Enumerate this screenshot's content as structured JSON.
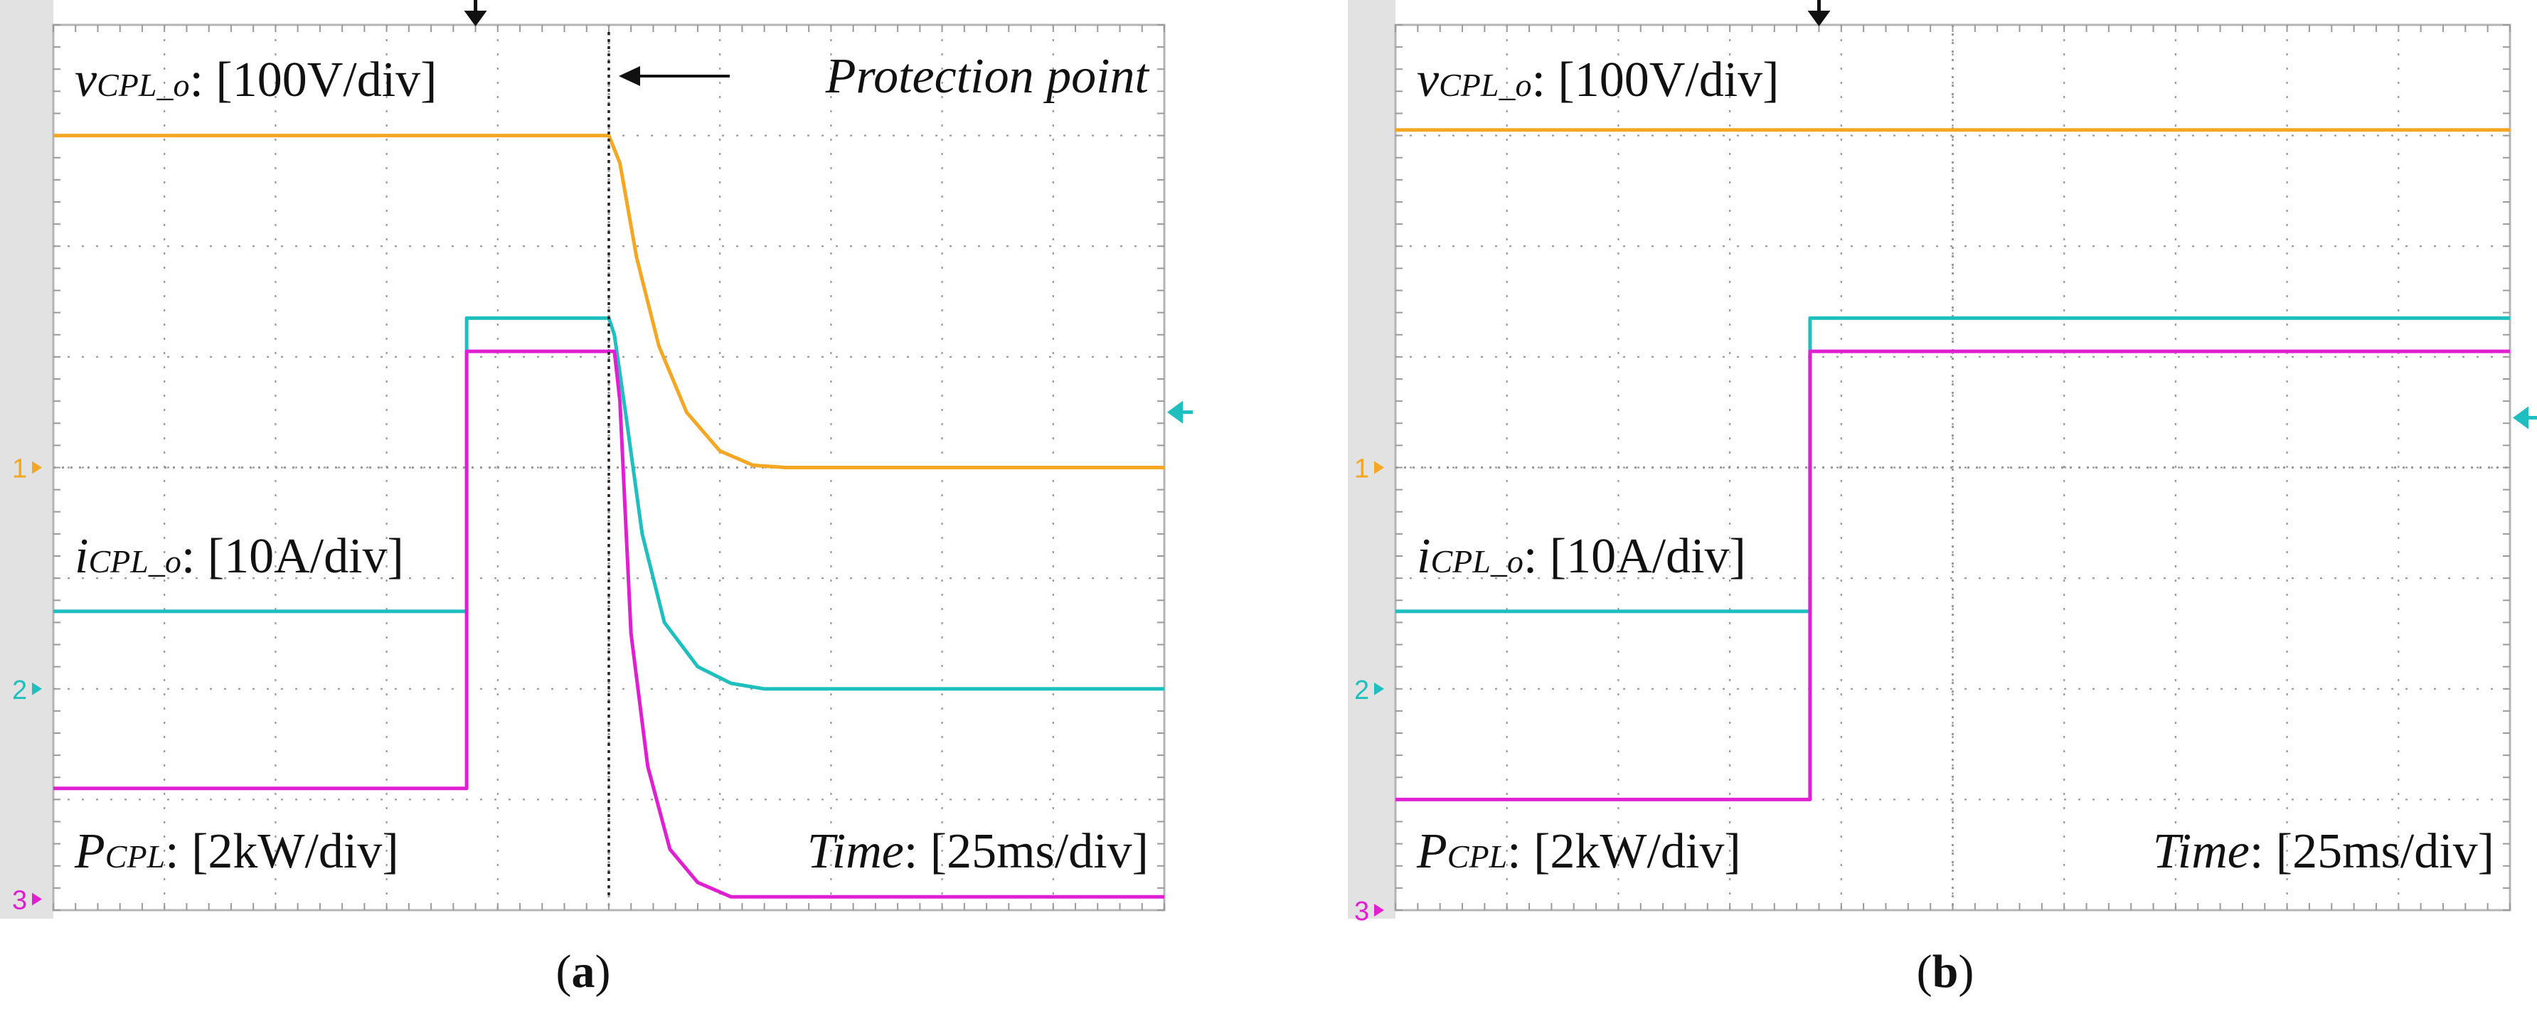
{
  "colors": {
    "voltage": "#F5A623",
    "current": "#1FBFBF",
    "power": "#E020D0",
    "grid": "#9a9a9a",
    "border": "#b4b4b4",
    "bezel": "#e2e2e2",
    "trigger_marker": "#111111"
  },
  "chart_data": [
    {
      "type": "line",
      "panel_label": "(a)",
      "panel_letter": "a",
      "annotation": "Protection point",
      "time_label": "Time",
      "time_scale": "[25ms/div]",
      "grid_divisions": {
        "x": 10,
        "y": 8
      },
      "protection_time_div": 5.0,
      "channel_markers": [
        {
          "label": "1",
          "level_div": 4.0,
          "color_key": "voltage"
        },
        {
          "label": "2",
          "level_div": 2.0,
          "color_key": "current"
        },
        {
          "label": "3",
          "level_div": 0.1,
          "color_key": "power"
        }
      ],
      "trigger_arrow_div": 3.8,
      "right_marker_level_div": 4.5,
      "series": [
        {
          "name": "vCPL_o",
          "base": "v",
          "sub": "CPL_o",
          "scale": "[100V/div]",
          "color_key": "voltage",
          "points": [
            [
              0,
              7.0
            ],
            [
              5.0,
              7.0
            ],
            [
              5.1,
              6.75
            ],
            [
              5.25,
              5.9
            ],
            [
              5.45,
              5.1
            ],
            [
              5.7,
              4.5
            ],
            [
              6.0,
              4.15
            ],
            [
              6.3,
              4.02
            ],
            [
              6.6,
              4.0
            ],
            [
              10,
              4.0
            ]
          ]
        },
        {
          "name": "iCPL_o",
          "base": "i",
          "sub": "CPL_o",
          "scale": "[10A/div]",
          "color_key": "current",
          "points": [
            [
              0,
              2.7
            ],
            [
              3.72,
              2.7
            ],
            [
              3.72,
              5.35
            ],
            [
              5.0,
              5.35
            ],
            [
              5.05,
              5.2
            ],
            [
              5.15,
              4.5
            ],
            [
              5.3,
              3.4
            ],
            [
              5.5,
              2.6
            ],
            [
              5.8,
              2.2
            ],
            [
              6.1,
              2.05
            ],
            [
              6.4,
              2.0
            ],
            [
              10,
              2.0
            ]
          ]
        },
        {
          "name": "PCPL",
          "base": "P",
          "sub": "CPL",
          "scale": "[2kW/div]",
          "color_key": "power",
          "points": [
            [
              0,
              1.1
            ],
            [
              3.72,
              1.1
            ],
            [
              3.72,
              5.05
            ],
            [
              5.05,
              5.05
            ],
            [
              5.1,
              4.6
            ],
            [
              5.2,
              2.5
            ],
            [
              5.35,
              1.3
            ],
            [
              5.55,
              0.55
            ],
            [
              5.8,
              0.25
            ],
            [
              6.1,
              0.12
            ],
            [
              10,
              0.12
            ]
          ]
        }
      ]
    },
    {
      "type": "line",
      "panel_label": "(b)",
      "panel_letter": "b",
      "time_label": "Time",
      "time_scale": "[25ms/div]",
      "grid_divisions": {
        "x": 10,
        "y": 8
      },
      "channel_markers": [
        {
          "label": "1",
          "level_div": 4.0,
          "color_key": "voltage"
        },
        {
          "label": "2",
          "level_div": 2.0,
          "color_key": "current"
        },
        {
          "label": "3",
          "level_div": 0.0,
          "color_key": "power"
        }
      ],
      "trigger_arrow_div": 3.8,
      "right_marker_level_div": 4.45,
      "series": [
        {
          "name": "vCPL_o",
          "base": "v",
          "sub": "CPL_o",
          "scale": "[100V/div]",
          "color_key": "voltage",
          "points": [
            [
              0,
              7.05
            ],
            [
              10,
              7.05
            ]
          ]
        },
        {
          "name": "iCPL_o",
          "base": "i",
          "sub": "CPL_o",
          "scale": "[10A/div]",
          "color_key": "current",
          "points": [
            [
              0,
              2.7
            ],
            [
              3.72,
              2.7
            ],
            [
              3.72,
              5.35
            ],
            [
              10,
              5.35
            ]
          ]
        },
        {
          "name": "PCPL",
          "base": "P",
          "sub": "CPL",
          "scale": "[2kW/div]",
          "color_key": "power",
          "points": [
            [
              0,
              1.0
            ],
            [
              3.72,
              1.0
            ],
            [
              3.72,
              5.05
            ],
            [
              10,
              5.05
            ]
          ]
        }
      ]
    }
  ]
}
